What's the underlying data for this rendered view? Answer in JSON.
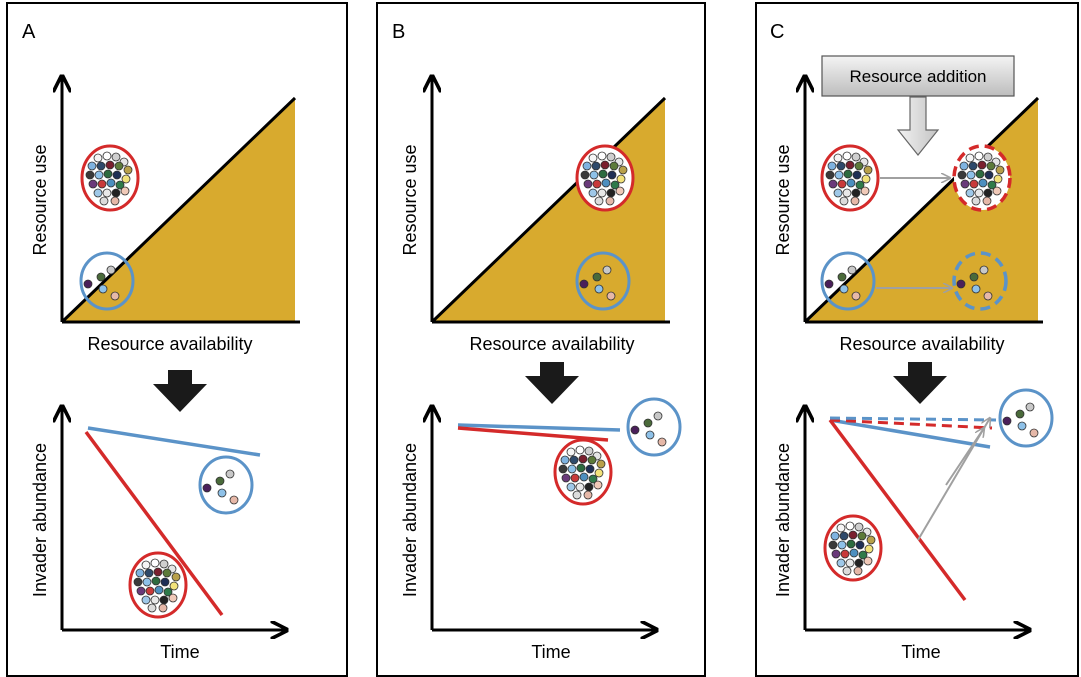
{
  "panels": [
    {
      "id": "A",
      "letter": "A",
      "top_graph": {
        "ylabel": "Resource use",
        "xlabel": "Resource availability"
      },
      "bottom_graph": {
        "ylabel": "Invader abundance",
        "xlabel": "Time"
      }
    },
    {
      "id": "B",
      "letter": "B",
      "top_graph": {
        "ylabel": "Resource use",
        "xlabel": "Resource availability"
      },
      "bottom_graph": {
        "ylabel": "Invader abundance",
        "xlabel": "Time"
      }
    },
    {
      "id": "C",
      "letter": "C",
      "callout": "Resource addition",
      "top_graph": {
        "ylabel": "Resource use",
        "xlabel": "Resource availability"
      },
      "bottom_graph": {
        "ylabel": "Invader abundance",
        "xlabel": "Time"
      }
    }
  ],
  "colors": {
    "wedge": "#d8aa2e",
    "diverse_community": "#d42a2a",
    "simple_community": "#5b93c8",
    "arrow_gray": "#a0a0a0",
    "black_arrow": "#1a1a1a",
    "callout_fill": "#c8c8c8"
  }
}
